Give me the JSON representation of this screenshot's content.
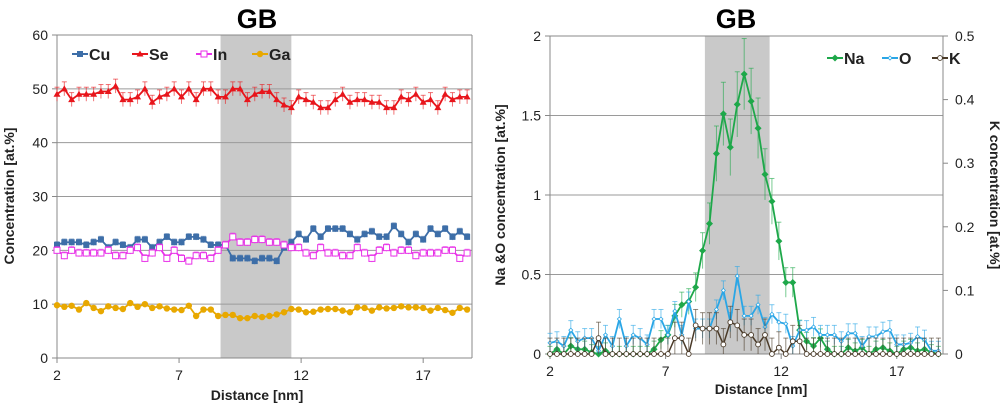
{
  "chart_data": [
    {
      "type": "line",
      "title": "GB",
      "xlabel": "Distance [nm]",
      "ylabel": "Concentration [at.%]",
      "xlim": [
        2,
        19
      ],
      "ylim": [
        0,
        60
      ],
      "xticks": [
        2,
        7,
        12,
        17
      ],
      "yticks": [
        0,
        10,
        20,
        30,
        40,
        50,
        60
      ],
      "grid": true,
      "legend": "top",
      "shaded_region": [
        8.7,
        11.6
      ],
      "x": [
        2,
        2.3,
        2.6,
        2.9,
        3.2,
        3.5,
        3.8,
        4.1,
        4.4,
        4.7,
        5,
        5.3,
        5.6,
        5.9,
        6.2,
        6.5,
        6.8,
        7.1,
        7.4,
        7.7,
        8,
        8.3,
        8.6,
        8.9,
        9.2,
        9.5,
        9.8,
        10.1,
        10.4,
        10.7,
        11,
        11.3,
        11.6,
        11.9,
        12.2,
        12.5,
        12.8,
        13.1,
        13.4,
        13.7,
        14,
        14.3,
        14.6,
        14.9,
        15.2,
        15.5,
        15.8,
        16.1,
        16.4,
        16.7,
        17,
        17.3,
        17.6,
        17.9,
        18.2,
        18.5,
        18.8
      ],
      "series": [
        {
          "name": "Cu",
          "color": "#3d6ea8",
          "marker": "square",
          "error": 0.6,
          "values": [
            21,
            21.5,
            21.5,
            21.5,
            21,
            21.5,
            22,
            20.5,
            21.5,
            21,
            20.5,
            22,
            22,
            20.5,
            21.5,
            22.5,
            21.5,
            21.5,
            22.5,
            22.5,
            22,
            21,
            21,
            21,
            18.5,
            18.5,
            18.5,
            18,
            18.5,
            18.5,
            18,
            20.5,
            21.5,
            23,
            22,
            24,
            22.5,
            24,
            24,
            24,
            23,
            22,
            23,
            23.5,
            22.5,
            22.5,
            24.5,
            23,
            21.5,
            23,
            22,
            24,
            23,
            24,
            22.5,
            23.5,
            22.5
          ]
        },
        {
          "name": "Se",
          "color": "#e8151b",
          "marker": "triangle",
          "error": 1.3,
          "values": [
            49,
            50,
            48,
            49,
            49,
            49,
            49.5,
            49.5,
            50.5,
            48,
            48,
            48.5,
            50,
            47.5,
            48.5,
            49,
            50,
            48.5,
            50,
            48,
            50,
            50,
            48.5,
            48.5,
            50,
            50,
            48,
            49,
            49.5,
            49.5,
            48,
            47,
            46.5,
            48.5,
            48,
            47.5,
            46.5,
            46.5,
            48,
            49,
            47.5,
            48,
            48,
            47.5,
            47.5,
            46.5,
            46.5,
            48.5,
            48,
            49,
            47.5,
            48,
            46.5,
            49,
            48,
            48.5,
            48.5
          ]
        },
        {
          "name": "In",
          "color": "#e832e8",
          "marker": "open-square",
          "error": 0.7,
          "values": [
            20,
            19,
            20,
            19.5,
            19.5,
            19.5,
            19.5,
            20,
            19,
            19,
            20,
            20.5,
            18.5,
            19.5,
            20.5,
            18.5,
            20,
            18.5,
            18,
            19,
            19,
            18.5,
            20,
            21,
            22.5,
            21.5,
            21.5,
            22,
            22,
            21.5,
            21.5,
            21,
            20.5,
            20.5,
            19.5,
            19,
            20.5,
            19.5,
            19.5,
            19,
            19,
            20.5,
            19.5,
            18.5,
            20,
            20.5,
            19.5,
            20,
            20,
            19,
            19.5,
            19.5,
            19.5,
            20,
            20,
            18.5,
            19.5
          ]
        },
        {
          "name": "Ga",
          "color": "#e8a800",
          "marker": "circle",
          "error": 0.3,
          "values": [
            9.8,
            9.5,
            9.7,
            9,
            10.2,
            9.3,
            8.7,
            9.6,
            9.3,
            9.1,
            10.2,
            9.5,
            10,
            9.3,
            9.6,
            9.2,
            9,
            8.9,
            9.7,
            7.8,
            9,
            9,
            7.8,
            8,
            8,
            7.4,
            7.4,
            7.8,
            7.6,
            7.8,
            8.1,
            8.5,
            9.1,
            9,
            8.5,
            8.6,
            9,
            9.1,
            9.1,
            8.8,
            8.5,
            9.4,
            9.3,
            8.8,
            9.4,
            9.2,
            9.3,
            9.6,
            9.4,
            9.4,
            9.3,
            8.8,
            9.3,
            8.9,
            8.4,
            9.3,
            9
          ]
        }
      ]
    },
    {
      "type": "line",
      "title": "GB",
      "xlabel": "Distance [nm]",
      "ylabel": "Na &O concentration [at.%]",
      "y2label": "K concentration [at.%]",
      "xlim": [
        2,
        19
      ],
      "ylim": [
        0,
        2
      ],
      "y2lim": [
        0,
        0.5
      ],
      "xticks": [
        2,
        7,
        12,
        17
      ],
      "yticks": [
        0,
        0.5,
        1,
        1.5,
        2
      ],
      "y2ticks": [
        0,
        0.1,
        0.2,
        0.3,
        0.4,
        0.5
      ],
      "grid": true,
      "legend": "top-right",
      "shaded_region": [
        8.7,
        11.5
      ],
      "x": [
        2,
        2.3,
        2.6,
        2.9,
        3.2,
        3.5,
        3.8,
        4.1,
        4.4,
        4.7,
        5,
        5.3,
        5.6,
        5.9,
        6.2,
        6.5,
        6.8,
        7.1,
        7.4,
        7.7,
        8,
        8.3,
        8.6,
        8.9,
        9.2,
        9.5,
        9.8,
        10.1,
        10.4,
        10.7,
        11,
        11.3,
        11.6,
        11.9,
        12.2,
        12.5,
        12.8,
        13.1,
        13.4,
        13.7,
        14,
        14.3,
        14.6,
        14.9,
        15.2,
        15.5,
        15.8,
        16.1,
        16.4,
        16.7,
        17,
        17.3,
        17.6,
        17.9,
        18.2,
        18.5,
        18.8
      ],
      "series": [
        {
          "name": "Na",
          "axis": "left",
          "color": "#1ea84a",
          "marker": "diamond",
          "error": 0.12,
          "values": [
            0,
            0.03,
            0,
            0.05,
            0.03,
            0.03,
            0.01,
            0,
            0.02,
            0,
            0,
            0,
            0,
            0,
            0,
            0.03,
            0.09,
            0.12,
            0.24,
            0.31,
            0.33,
            0.42,
            0.65,
            0.82,
            1.26,
            1.51,
            1.3,
            1.57,
            1.76,
            1.59,
            1.42,
            1.13,
            0.96,
            0.71,
            0.45,
            0.45,
            0.15,
            0.08,
            0.05,
            0.1,
            0.03,
            0,
            0,
            0.04,
            0.02,
            0.04,
            0,
            0.03,
            0.04,
            0.02,
            0,
            0.03,
            0.04,
            0.02,
            0.03,
            0.01,
            0
          ]
        },
        {
          "name": "O",
          "axis": "left",
          "color": "#2aa6e6",
          "marker": "open-diamond",
          "error": 0.06,
          "values": [
            0.07,
            0.08,
            0.05,
            0.15,
            0.08,
            0.1,
            0.1,
            0.02,
            0.12,
            0.05,
            0.22,
            0.05,
            0.12,
            0.1,
            0.06,
            0.22,
            0.22,
            0.12,
            0.27,
            0.12,
            0.33,
            0.16,
            0.16,
            0.16,
            0.28,
            0.4,
            0.2,
            0.49,
            0.24,
            0.24,
            0.31,
            0.17,
            0.25,
            0.2,
            0.19,
            0.05,
            0.15,
            0.15,
            0.17,
            0.12,
            0.12,
            0.12,
            0.08,
            0.13,
            0.13,
            0.05,
            0.11,
            0.11,
            0.14,
            0.15,
            0.06,
            0.06,
            0.07,
            0.11,
            0.09,
            0.02,
            0.02
          ]
        },
        {
          "name": "K",
          "axis": "right",
          "color": "#4a3a28",
          "marker": "open-circle",
          "error": 0.025,
          "values": [
            0,
            0,
            0,
            0,
            0,
            0,
            0,
            0.025,
            0,
            0,
            0,
            0,
            0,
            0,
            0,
            0,
            0,
            0,
            0.025,
            0.025,
            0,
            0.045,
            0.04,
            0.04,
            0.04,
            0.015,
            0.05,
            0.045,
            0.03,
            0.03,
            0.015,
            0.03,
            0,
            0.01,
            0,
            0.02,
            0.02,
            0,
            0,
            0,
            0,
            0,
            0,
            0,
            0,
            0,
            0,
            0,
            0,
            0,
            0,
            0,
            0,
            0,
            0,
            0,
            0
          ]
        }
      ]
    }
  ]
}
